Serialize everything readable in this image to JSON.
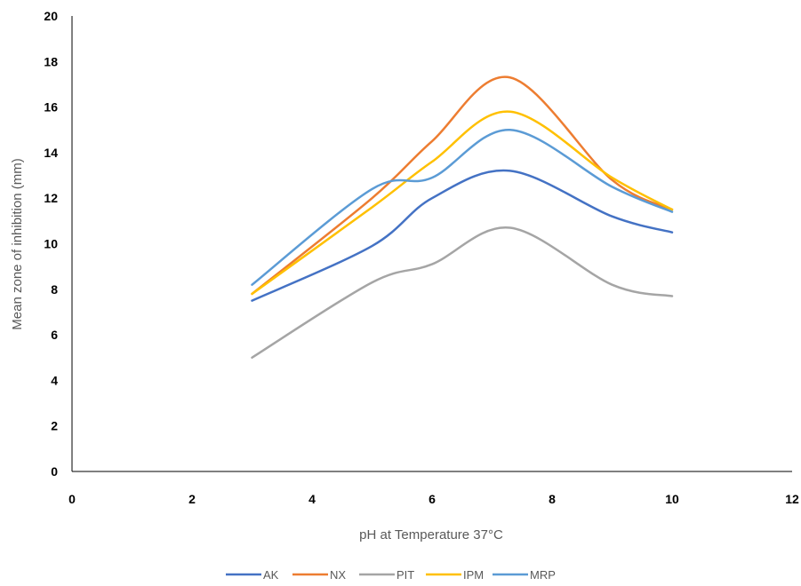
{
  "chart_data": {
    "type": "line",
    "smooth": true,
    "title": "",
    "xlabel": "pH at Temperature 37°C",
    "ylabel": "Mean zone of inhibition (mm)",
    "xlim": [
      0,
      12
    ],
    "ylim": [
      0,
      20
    ],
    "xticks": [
      0,
      2,
      4,
      6,
      8,
      10,
      12
    ],
    "yticks": [
      0,
      2,
      4,
      6,
      8,
      10,
      12,
      14,
      16,
      18,
      20
    ],
    "grid": false,
    "legend_position": "bottom",
    "x": [
      3,
      5,
      6,
      7.3,
      9,
      10
    ],
    "series": [
      {
        "name": "AK",
        "color": "#4472C4",
        "values": [
          7.5,
          9.9,
          12.0,
          13.2,
          11.2,
          10.5
        ]
      },
      {
        "name": "NX",
        "color": "#ED7D31",
        "values": [
          7.8,
          12.0,
          14.5,
          17.3,
          12.8,
          11.5
        ]
      },
      {
        "name": "PIT",
        "color": "#A5A5A5",
        "values": [
          5.0,
          8.3,
          9.1,
          10.7,
          8.2,
          7.7
        ]
      },
      {
        "name": "IPM",
        "color": "#FFC000",
        "values": [
          7.8,
          11.6,
          13.6,
          15.8,
          12.9,
          11.5
        ]
      },
      {
        "name": "MRP",
        "color": "#5B9BD5",
        "values": [
          8.2,
          12.4,
          12.9,
          15.0,
          12.5,
          11.4
        ]
      }
    ]
  }
}
